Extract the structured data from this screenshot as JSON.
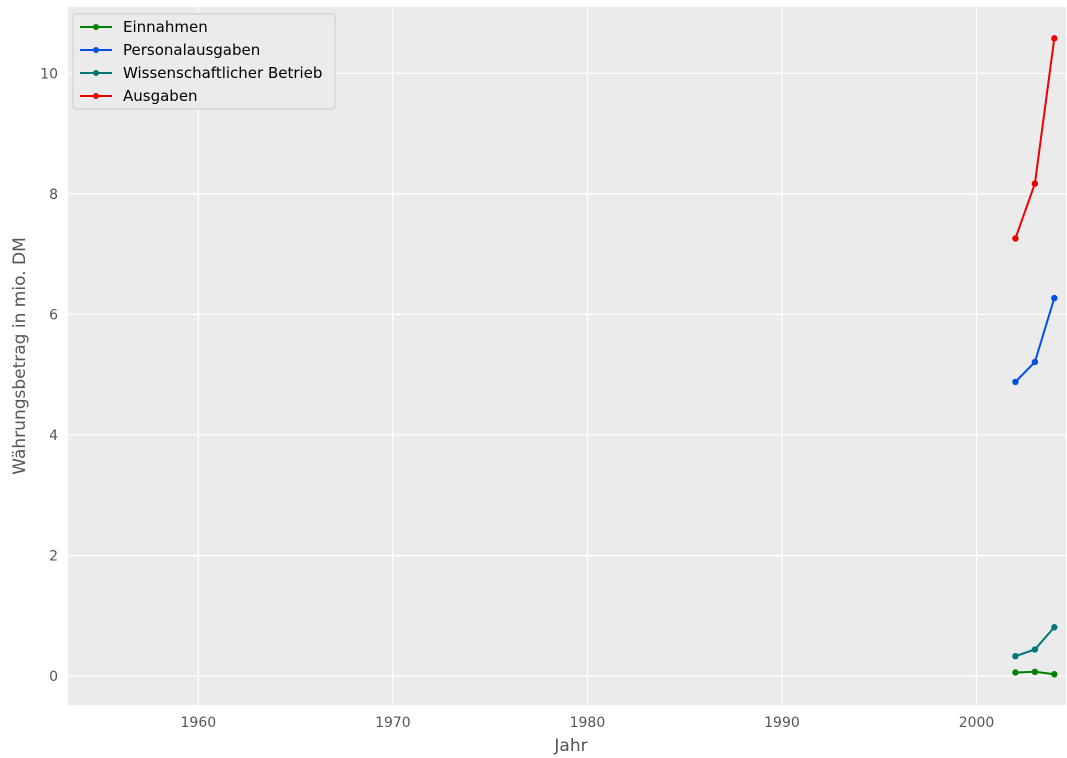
{
  "chart_data": {
    "type": "line",
    "xlabel": "Jahr",
    "ylabel": "Währungsbetrag in mio. DM",
    "xlim": [
      1953.3,
      2004.6
    ],
    "ylim": [
      -0.48,
      11.1
    ],
    "xticks": [
      1960,
      1970,
      1980,
      1990,
      2000
    ],
    "yticks": [
      0,
      2,
      4,
      6,
      8,
      10
    ],
    "grid": true,
    "legend_position": "top-left",
    "series": [
      {
        "name": "Einnahmen",
        "color": "#008000",
        "x": [
          2002,
          2003,
          2004
        ],
        "y": [
          0.06,
          0.07,
          0.03
        ]
      },
      {
        "name": "Personalausgaben",
        "color": "#0050e6",
        "x": [
          2002,
          2003,
          2004
        ],
        "y": [
          4.88,
          5.21,
          6.27
        ]
      },
      {
        "name": "Wissenschaftlicher Betrieb",
        "color": "#007878",
        "x": [
          2002,
          2003,
          2004
        ],
        "y": [
          0.33,
          0.44,
          0.81
        ]
      },
      {
        "name": "Ausgaben",
        "color": "#ee0000",
        "x": [
          2002,
          2003,
          2004
        ],
        "y": [
          7.26,
          8.17,
          10.58
        ]
      }
    ]
  }
}
